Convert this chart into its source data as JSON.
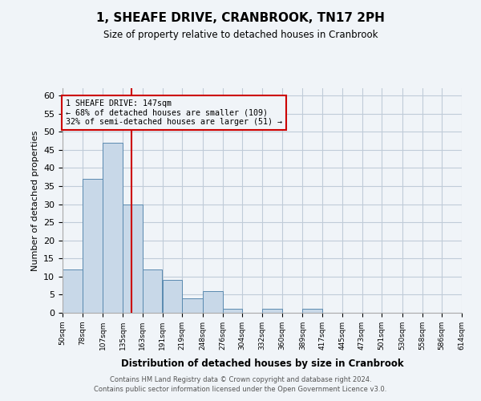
{
  "title": "1, SHEAFE DRIVE, CRANBROOK, TN17 2PH",
  "subtitle": "Size of property relative to detached houses in Cranbrook",
  "xlabel": "Distribution of detached houses by size in Cranbrook",
  "ylabel": "Number of detached properties",
  "bin_labels": [
    "50sqm",
    "78sqm",
    "107sqm",
    "135sqm",
    "163sqm",
    "191sqm",
    "219sqm",
    "248sqm",
    "276sqm",
    "304sqm",
    "332sqm",
    "360sqm",
    "389sqm",
    "417sqm",
    "445sqm",
    "473sqm",
    "501sqm",
    "530sqm",
    "558sqm",
    "586sqm",
    "614sqm"
  ],
  "bar_values": [
    12,
    37,
    47,
    30,
    12,
    9,
    4,
    6,
    1,
    0,
    1,
    0,
    1,
    0,
    0,
    0,
    0,
    0,
    0,
    0
  ],
  "bin_edges": [
    50,
    78,
    107,
    135,
    163,
    191,
    219,
    248,
    276,
    304,
    332,
    360,
    389,
    417,
    445,
    473,
    501,
    530,
    558,
    586,
    614
  ],
  "bar_color": "#c8d8e8",
  "bar_edgecolor": "#5a8ab0",
  "property_value": 147,
  "vline_color": "#cc0000",
  "annotation_line1": "1 SHEAFE DRIVE: 147sqm",
  "annotation_line2": "← 68% of detached houses are smaller (109)",
  "annotation_line3": "32% of semi-detached houses are larger (51) →",
  "annotation_box_color": "#cc0000",
  "ylim": [
    0,
    62
  ],
  "yticks": [
    0,
    5,
    10,
    15,
    20,
    25,
    30,
    35,
    40,
    45,
    50,
    55,
    60
  ],
  "grid_color": "#c0ccd8",
  "footer_line1": "Contains HM Land Registry data © Crown copyright and database right 2024.",
  "footer_line2": "Contains public sector information licensed under the Open Government Licence v3.0.",
  "bg_color": "#f0f4f8"
}
